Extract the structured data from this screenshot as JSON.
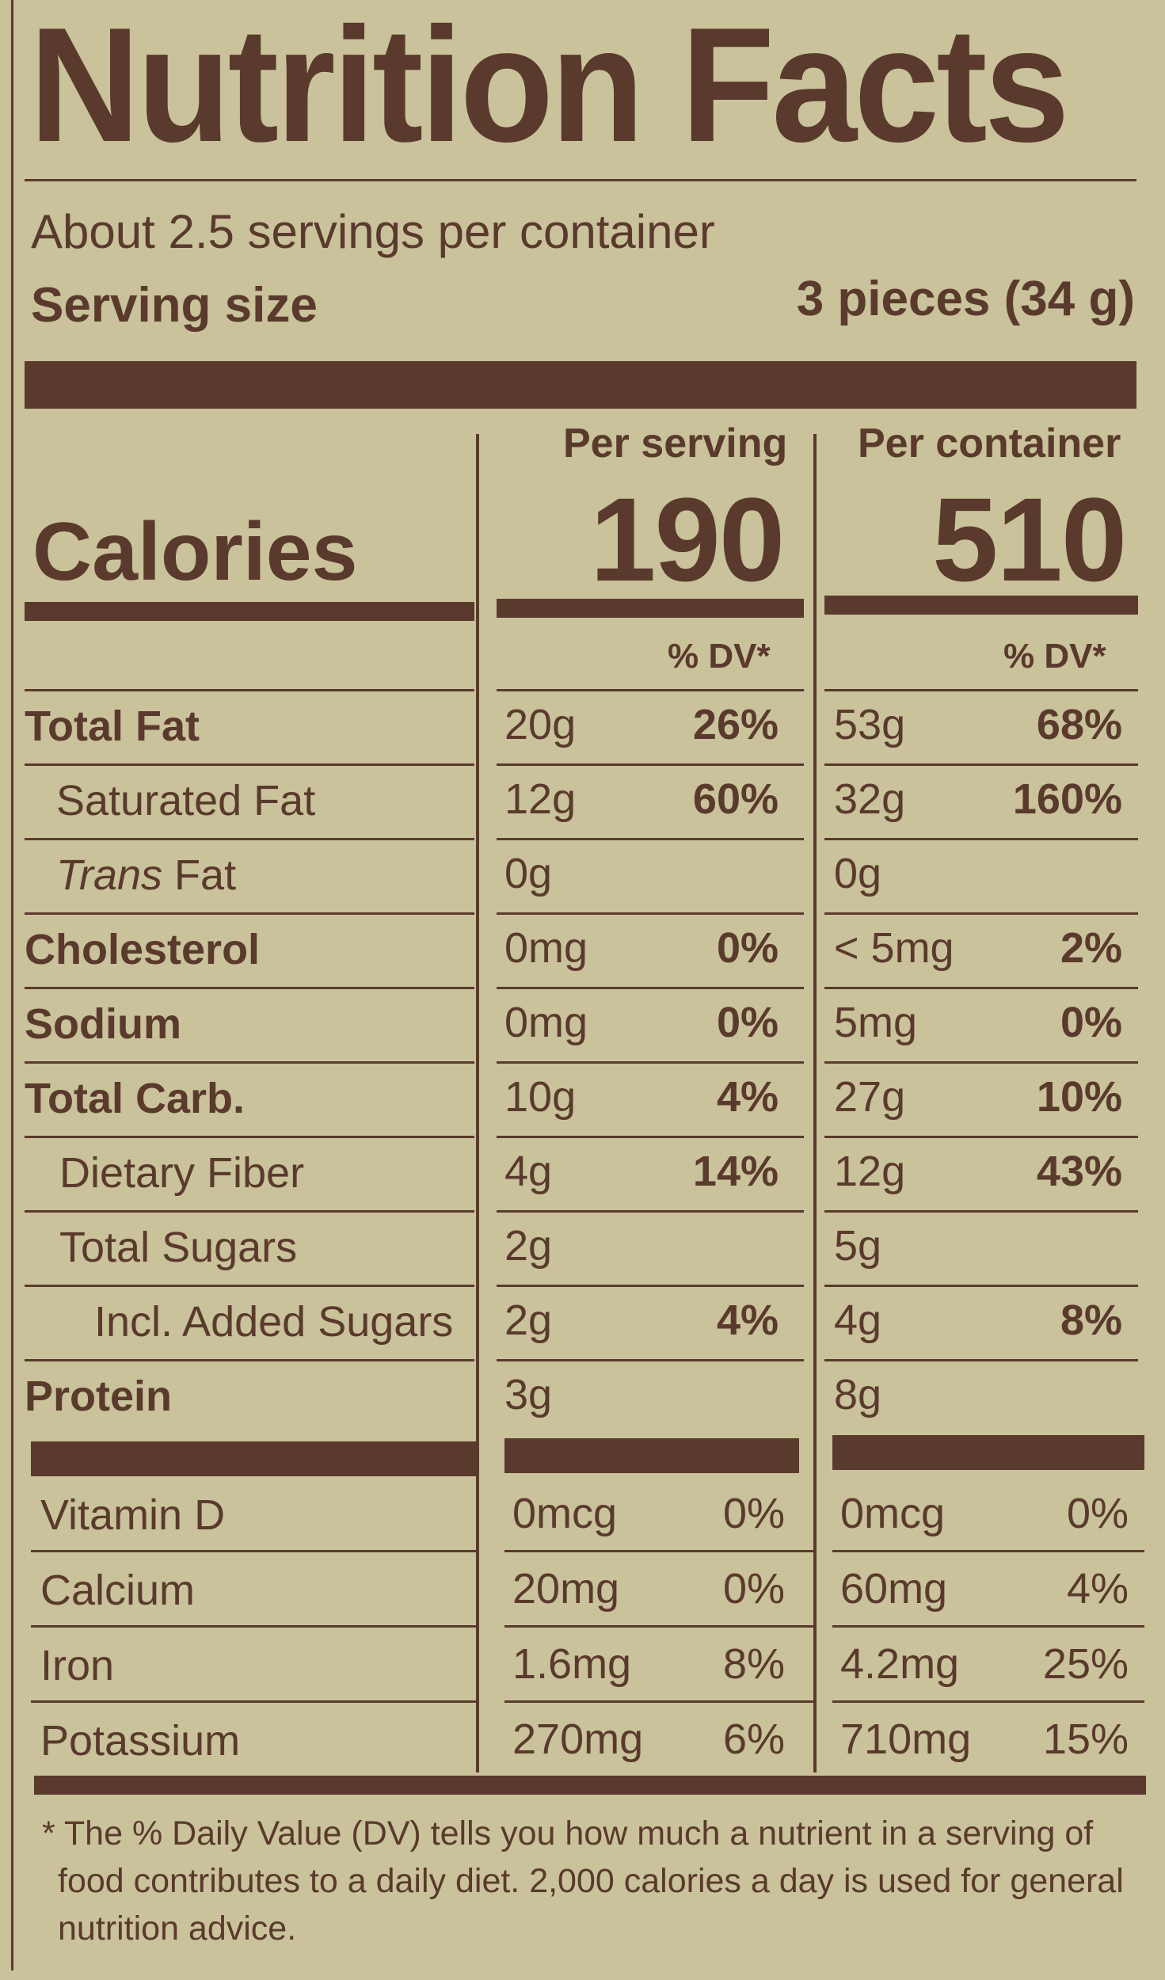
{
  "header": {
    "title": "Nutrition Facts",
    "servings_per_container": "About 2.5 servings per container",
    "serving_size_label": "Serving size",
    "serving_size_value": "3 pieces (34 g)"
  },
  "calories": {
    "label": "Calories",
    "per_serving_header": "Per serving",
    "per_container_header": "Per container",
    "per_serving": "190",
    "per_container": "510",
    "dv_header": "% DV*"
  },
  "nutrients": [
    {
      "label": "Total Fat",
      "serving_amount": "20g",
      "serving_dv": "26%",
      "container_amount": "53g",
      "container_dv": "68%"
    },
    {
      "label": "Saturated Fat",
      "serving_amount": "12g",
      "serving_dv": "60%",
      "container_amount": "32g",
      "container_dv": "160%"
    },
    {
      "label_italic": "Trans",
      "label": "Fat",
      "serving_amount": "0g",
      "serving_dv": "",
      "container_amount": "0g",
      "container_dv": ""
    },
    {
      "label": "Cholesterol",
      "serving_amount": "0mg",
      "serving_dv": "0%",
      "container_amount": "< 5mg",
      "container_dv": "2%"
    },
    {
      "label": "Sodium",
      "serving_amount": "0mg",
      "serving_dv": "0%",
      "container_amount": "5mg",
      "container_dv": "0%"
    },
    {
      "label": "Total Carb.",
      "serving_amount": "10g",
      "serving_dv": "4%",
      "container_amount": "27g",
      "container_dv": "10%"
    },
    {
      "label": "Dietary Fiber",
      "serving_amount": "4g",
      "serving_dv": "14%",
      "container_amount": "12g",
      "container_dv": "43%"
    },
    {
      "label": "Total Sugars",
      "serving_amount": "2g",
      "serving_dv": "",
      "container_amount": "5g",
      "container_dv": ""
    },
    {
      "label": "Incl. Added Sugars",
      "serving_amount": "2g",
      "serving_dv": "4%",
      "container_amount": "4g",
      "container_dv": "8%"
    },
    {
      "label": "Protein",
      "serving_amount": "3g",
      "serving_dv": "",
      "container_amount": "8g",
      "container_dv": ""
    }
  ],
  "vitamins": [
    {
      "label": "Vitamin D",
      "serving_amount": "0mcg",
      "serving_dv": "0%",
      "container_amount": "0mcg",
      "container_dv": "0%"
    },
    {
      "label": "Calcium",
      "serving_amount": "20mg",
      "serving_dv": "0%",
      "container_amount": "60mg",
      "container_dv": "4%"
    },
    {
      "label": "Iron",
      "serving_amount": "1.6mg",
      "serving_dv": "8%",
      "container_amount": "4.2mg",
      "container_dv": "25%"
    },
    {
      "label": "Potassium",
      "serving_amount": "270mg",
      "serving_dv": "6%",
      "container_amount": "710mg",
      "container_dv": "15%"
    }
  ],
  "footnote": {
    "line1": "* The % Daily Value (DV) tells you how much a nutrient in a serving of",
    "line2": "food contributes to a daily diet. 2,000 calories a day is used for general",
    "line3": "nutrition advice."
  },
  "colors": {
    "background": "#c9c29b",
    "ink": "#5a3a2c"
  }
}
